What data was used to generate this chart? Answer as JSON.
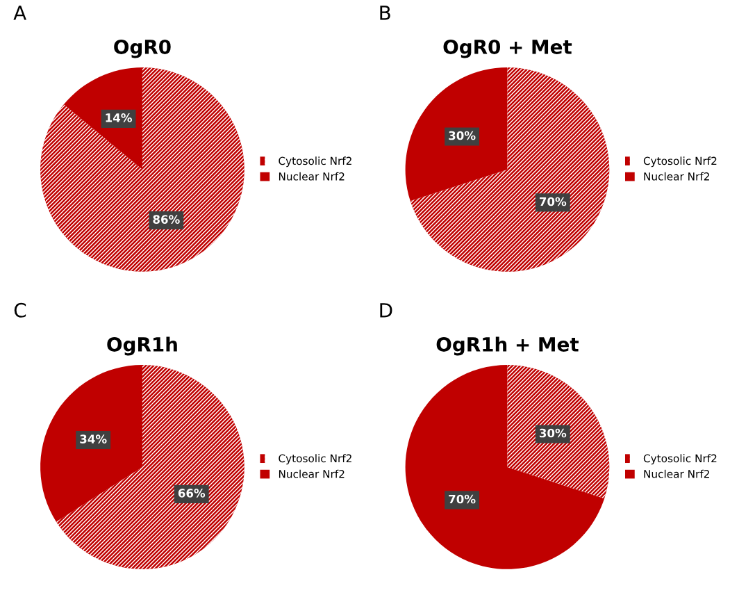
{
  "chart_data": [
    {
      "type": "pie",
      "title": "OgR0",
      "annotations": [
        "A"
      ],
      "categories": [
        "Cytosolic Nrf2",
        "Nuclear Nrf2"
      ],
      "values": [
        86,
        14
      ],
      "value_labels": [
        "86%",
        "14%"
      ],
      "data_labels": true,
      "colors": [
        "#c00000",
        "#c00000"
      ],
      "legend": "right"
    },
    {
      "type": "pie",
      "title": "OgR0 + Met",
      "annotations": [
        "B"
      ],
      "categories": [
        "Cytosolic Nrf2",
        "Nuclear Nrf2"
      ],
      "values": [
        70,
        30
      ],
      "value_labels": [
        "70%",
        "30%"
      ],
      "data_labels": true,
      "colors": [
        "#c00000",
        "#c00000"
      ],
      "legend": "right"
    },
    {
      "type": "pie",
      "title": "OgR1h",
      "annotations": [
        "C"
      ],
      "categories": [
        "Cytosolic Nrf2",
        "Nuclear Nrf2"
      ],
      "values": [
        66,
        34
      ],
      "value_labels": [
        "66%",
        "34%"
      ],
      "data_labels": true,
      "colors": [
        "#c00000",
        "#c00000"
      ],
      "legend": "right"
    },
    {
      "type": "pie",
      "title": "OgR1h + Met",
      "annotations": [
        "D"
      ],
      "categories": [
        "Cytosolic Nrf2",
        "Nuclear Nrf2"
      ],
      "values": [
        30,
        70
      ],
      "value_labels": [
        "30%",
        "70%"
      ],
      "data_labels": true,
      "colors": [
        "#c00000",
        "#c00000"
      ],
      "legend": "right"
    }
  ]
}
